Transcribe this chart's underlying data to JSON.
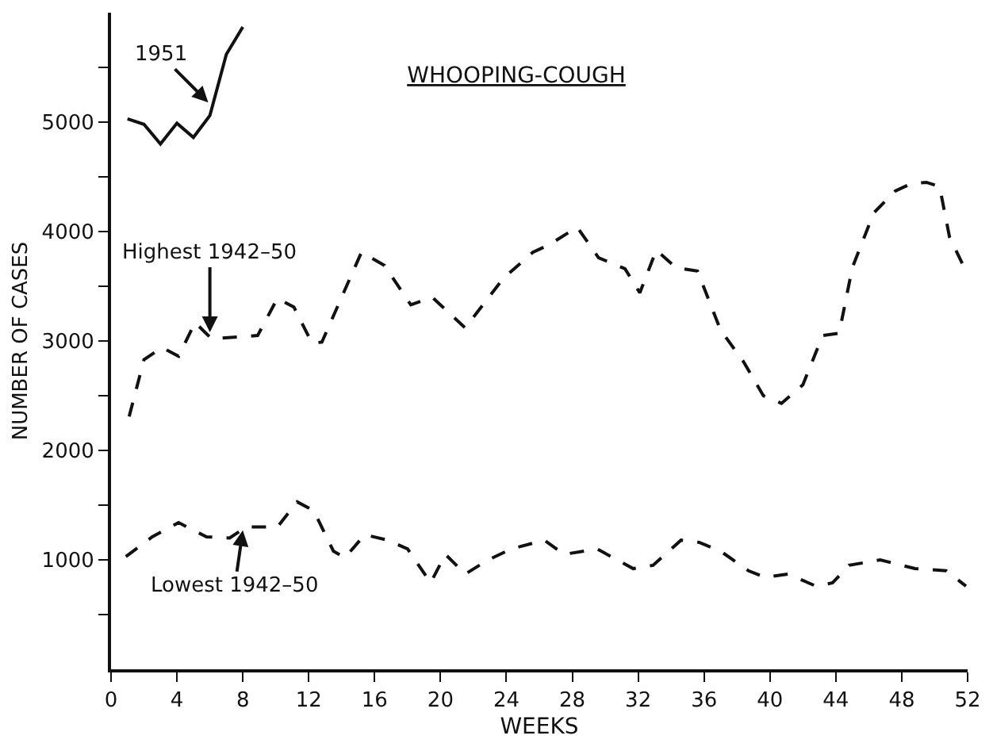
{
  "chart_data": {
    "type": "line",
    "title": "WHOOPING-COUGH",
    "xlabel": "WEEKS",
    "ylabel": "NUMBER OF CASES",
    "xlim": [
      0,
      52
    ],
    "xticks": [
      0,
      4,
      8,
      12,
      16,
      20,
      24,
      28,
      32,
      36,
      40,
      44,
      48,
      52
    ],
    "ylim": [
      0,
      6000
    ],
    "yticks": [
      {
        "value": 500,
        "label": null
      },
      1000,
      {
        "value": 1500,
        "label": null
      },
      2000,
      {
        "value": 2500,
        "label": null
      },
      3000,
      {
        "value": 3500,
        "label": null
      },
      4000,
      {
        "value": 4500,
        "label": null
      },
      5000,
      {
        "value": 5500,
        "label": null
      }
    ],
    "marker": "none",
    "series": [
      {
        "color": "#111111",
        "line_style": "solid",
        "x": [
          1,
          2,
          3,
          4,
          5,
          6,
          7,
          8
        ],
        "values": [
          5030,
          4980,
          4800,
          4990,
          4860,
          5060,
          5620,
          5870
        ]
      },
      {
        "color": "#111111",
        "line_style": "dashed",
        "x": [
          1.1,
          2.0,
          3.1,
          4.1,
          5.1,
          6.1,
          8.9,
          10.1,
          11.1,
          12.2,
          12.8,
          15.2,
          16.6,
          18.2,
          19.5,
          21.5,
          23.8,
          25.6,
          26.6,
          28.3,
          29.6,
          31.2,
          32.1,
          33.1,
          34.3,
          35.6,
          37.0,
          38.4,
          39.6,
          40.7,
          42.0,
          43.2,
          44.2,
          45.0,
          46.3,
          47.6,
          48.6,
          49.5,
          50.3,
          50.9,
          51.7
        ],
        "values": [
          2310,
          2830,
          2940,
          2860,
          3170,
          3020,
          3050,
          3390,
          3310,
          2980,
          2990,
          3810,
          3690,
          3330,
          3400,
          3120,
          3570,
          3810,
          3880,
          4040,
          3760,
          3660,
          3440,
          3830,
          3670,
          3640,
          3100,
          2810,
          2500,
          2430,
          2600,
          3050,
          3070,
          3670,
          4170,
          4370,
          4440,
          4450,
          4410,
          3950,
          3700
        ]
      },
      {
        "color": "#111111",
        "line_style": "dashed",
        "x": [
          0.9,
          2.5,
          4.1,
          5.8,
          7.2,
          8.2,
          10.1,
          11.3,
          12.3,
          13.5,
          14.2,
          15.4,
          16.8,
          18.0,
          19.4,
          20.3,
          21.5,
          22.9,
          24.3,
          26.3,
          27.5,
          29.5,
          31.7,
          32.9,
          34.6,
          35.7,
          37.0,
          38.7,
          39.7,
          41.1,
          42.8,
          43.8,
          44.8,
          46.7,
          48.8,
          50.7,
          51.9
        ],
        "values": [
          1030,
          1210,
          1340,
          1210,
          1200,
          1300,
          1300,
          1530,
          1450,
          1080,
          1020,
          1230,
          1180,
          1100,
          790,
          1050,
          870,
          1000,
          1100,
          1180,
          1050,
          1100,
          920,
          950,
          1180,
          1160,
          1080,
          900,
          840,
          870,
          760,
          790,
          950,
          1000,
          920,
          900,
          760
        ]
      }
    ],
    "annotations": [
      {
        "text": "1951",
        "x": 5.9,
        "y": 5180
      },
      {
        "text": "Highest 1942–50",
        "x": 6,
        "y": 3080
      },
      {
        "text": "Lowest 1942–50",
        "x": 8,
        "y": 1270
      }
    ]
  }
}
